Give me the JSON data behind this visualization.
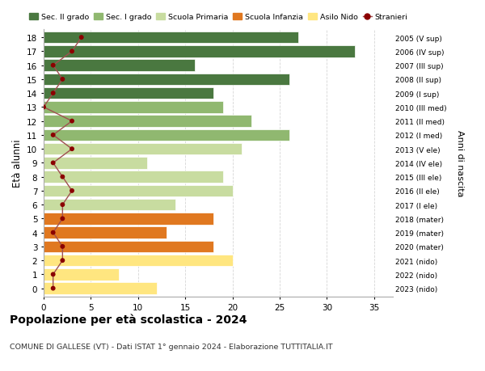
{
  "ages": [
    0,
    1,
    2,
    3,
    4,
    5,
    6,
    7,
    8,
    9,
    10,
    11,
    12,
    13,
    14,
    15,
    16,
    17,
    18
  ],
  "values": [
    12,
    8,
    20,
    18,
    13,
    18,
    14,
    20,
    19,
    11,
    21,
    26,
    22,
    19,
    18,
    26,
    16,
    33,
    27
  ],
  "stranieri": [
    1,
    1,
    2,
    2,
    1,
    2,
    2,
    3,
    2,
    1,
    3,
    1,
    3,
    0,
    1,
    2,
    1,
    3,
    4
  ],
  "categories": {
    "Asilo Nido": [
      0,
      1,
      2
    ],
    "Scuola Infanzia": [
      3,
      4,
      5
    ],
    "Scuola Primaria": [
      6,
      7,
      8,
      9,
      10
    ],
    "Sec. I grado": [
      11,
      12,
      13
    ],
    "Sec. II grado": [
      14,
      15,
      16,
      17,
      18
    ]
  },
  "colors": {
    "Asilo Nido": "#FFE680",
    "Scuola Infanzia": "#E07820",
    "Scuola Primaria": "#C8DCA0",
    "Sec. I grado": "#90B870",
    "Sec. II grado": "#4A7840"
  },
  "right_labels": [
    "2023 (nido)",
    "2022 (nido)",
    "2021 (nido)",
    "2020 (mater)",
    "2019 (mater)",
    "2018 (mater)",
    "2017 (I ele)",
    "2016 (II ele)",
    "2015 (III ele)",
    "2014 (IV ele)",
    "2013 (V ele)",
    "2012 (I med)",
    "2011 (II med)",
    "2010 (III med)",
    "2009 (I sup)",
    "2008 (II sup)",
    "2007 (III sup)",
    "2006 (IV sup)",
    "2005 (V sup)"
  ],
  "legend_order": [
    "Sec. II grado",
    "Sec. I grado",
    "Scuola Primaria",
    "Scuola Infanzia",
    "Asilo Nido",
    "Stranieri"
  ],
  "ylabel": "Età alunni",
  "right_ylabel": "Anni di nascita",
  "title": "Popolazione per età scolastica - 2024",
  "subtitle": "COMUNE DI GALLESE (VT) - Dati ISTAT 1° gennaio 2024 - Elaborazione TUTTITALIA.IT",
  "xlim": [
    0,
    37
  ],
  "stranieri_color": "#8B0000",
  "stranieri_line_color": "#A05050",
  "bg_color": "#f5f5f5"
}
